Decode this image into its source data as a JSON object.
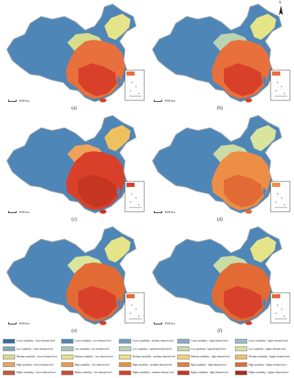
{
  "panels": [
    {
      "label": "(a)",
      "scale": "1000 km"
    },
    {
      "label": "(b)",
      "scale": "1000 km"
    },
    {
      "label": "(c)",
      "scale": "1000 km"
    },
    {
      "label": "(d)",
      "scale": "1000 km"
    },
    {
      "label": "(e)",
      "scale": "1000 km"
    },
    {
      "label": "(f)",
      "scale": "1000 km"
    }
  ],
  "north_label": "N",
  "colors": {
    "lower": "#4f86b8",
    "low": "#8fb7c2",
    "medium": "#e4e58a",
    "high": "#f0a25a",
    "higher": "#d9402a",
    "border": "#9aa3a8"
  },
  "legend": [
    [
      "Lower suitability - lower element level",
      "Lower suitability - low element level",
      "Lower suitability - medium element level",
      "Lower suitability - high element level",
      "Lower suitability - higher element level"
    ],
    [
      "Low suitability - lower element level",
      "Low suitability - low element level",
      "Low suitability - medium element level",
      "Low suitability - high element level",
      "Low suitability - higher element level"
    ],
    [
      "Medium suitability - lower element level",
      "Medium suitability - low element level",
      "Medium suitability - medium element level",
      "Medium suitability - high element level",
      "Medium suitability - higher element level"
    ],
    [
      "High suitability - lower element level",
      "High suitability - low element level",
      "High suitability - medium element level",
      "High suitability - high element level",
      "High suitability - higher element level"
    ],
    [
      "Higher suitability - lower element level",
      "Higher suitability - low element level",
      "Higher suitability - medium element level",
      "Higher suitability - high element level",
      "Higher suitability - higher element level"
    ]
  ],
  "legend_colors": [
    [
      "#2f6ea6",
      "#4f86b8",
      "#6b9fc0",
      "#85aec4",
      "#9bbcc6"
    ],
    [
      "#7ea8b6",
      "#a5c4bd",
      "#b8d3b2",
      "#c9dca6",
      "#d9e49c"
    ],
    [
      "#d8dc8a",
      "#e6e488",
      "#f0e27e",
      "#f2d56d",
      "#eec05f"
    ],
    [
      "#e8a559",
      "#eb9b4e",
      "#ec8e45",
      "#e87c3c",
      "#e26a35"
    ],
    [
      "#c25a3a",
      "#cc4d32",
      "#d9402a",
      "#c63422",
      "#a82a1b"
    ]
  ]
}
